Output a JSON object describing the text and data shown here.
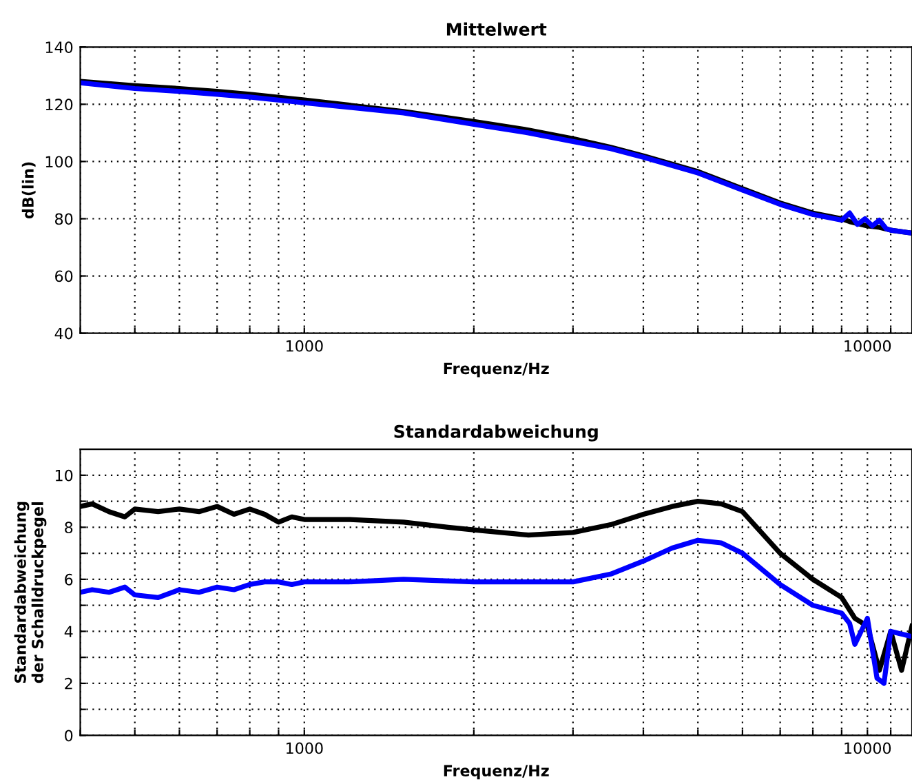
{
  "chart_data": [
    {
      "type": "line",
      "title": "Mittelwert",
      "xlabel": "Frequenz/Hz",
      "ylabel": "dB(lin)",
      "log": "x",
      "grid": true,
      "line_style": "solid",
      "xlim": [
        400,
        12000
      ],
      "ylim": [
        40,
        140
      ],
      "yticks": [
        40,
        60,
        80,
        100,
        120,
        140
      ],
      "xticks": [
        {
          "value": 400,
          "label": null
        },
        {
          "value": 500,
          "label": null
        },
        {
          "value": 600,
          "label": null
        },
        {
          "value": 700,
          "label": null
        },
        {
          "value": 800,
          "label": null
        },
        {
          "value": 900,
          "label": null
        },
        1000,
        {
          "value": 2000,
          "label": null
        },
        {
          "value": 3000,
          "label": null
        },
        {
          "value": 4000,
          "label": null
        },
        {
          "value": 5000,
          "label": null
        },
        {
          "value": 6000,
          "label": null
        },
        {
          "value": 7000,
          "label": null
        },
        {
          "value": 8000,
          "label": null
        },
        {
          "value": 9000,
          "label": null
        },
        10000,
        {
          "value": 11000,
          "label": null
        }
      ],
      "series": [
        {
          "color": "#000000",
          "x": [
            400,
            500,
            600,
            700,
            800,
            1000,
            1500,
            2000,
            2500,
            3000,
            3500,
            4000,
            5000,
            6000,
            7000,
            8000,
            9000,
            9300,
            10000,
            10500,
            11000,
            12000
          ],
          "values": [
            128,
            126.5,
            125.5,
            124.5,
            123.5,
            121.5,
            117.5,
            114,
            111,
            108,
            105,
            102,
            96.5,
            90.5,
            85.5,
            82,
            80,
            79,
            77.5,
            77,
            76,
            75
          ]
        },
        {
          "color": "#0000ff",
          "x": [
            400,
            500,
            600,
            700,
            800,
            1000,
            1500,
            2000,
            2500,
            3000,
            3500,
            4000,
            5000,
            6000,
            7000,
            8000,
            9000,
            9300,
            9600,
            9900,
            10200,
            10500,
            10800,
            11000,
            12000
          ],
          "values": [
            127.5,
            125.5,
            124.5,
            123.5,
            122.5,
            120.5,
            117,
            113,
            110,
            107,
            104.5,
            101.5,
            96,
            90,
            85,
            81.5,
            79.5,
            82,
            78,
            80,
            77.5,
            79.5,
            76.5,
            76,
            75
          ]
        }
      ]
    },
    {
      "type": "line",
      "title": "Standardabweichung",
      "xlabel": "Frequenz/Hz",
      "ylabel": "Standardabweichung\nder Schalldruckpegel",
      "log": "x",
      "grid": true,
      "line_style": "solid",
      "xlim": [
        400,
        12000
      ],
      "ylim": [
        0,
        11
      ],
      "yticks": [
        0,
        {
          "value": 1,
          "label": null
        },
        2,
        {
          "value": 3,
          "label": null
        },
        4,
        {
          "value": 5,
          "label": null
        },
        6,
        {
          "value": 7,
          "label": null
        },
        8,
        {
          "value": 9,
          "label": null
        },
        10
      ],
      "xticks": [
        {
          "value": 400,
          "label": null
        },
        {
          "value": 500,
          "label": null
        },
        {
          "value": 600,
          "label": null
        },
        {
          "value": 700,
          "label": null
        },
        {
          "value": 800,
          "label": null
        },
        {
          "value": 900,
          "label": null
        },
        1000,
        {
          "value": 2000,
          "label": null
        },
        {
          "value": 3000,
          "label": null
        },
        {
          "value": 4000,
          "label": null
        },
        {
          "value": 5000,
          "label": null
        },
        {
          "value": 6000,
          "label": null
        },
        {
          "value": 7000,
          "label": null
        },
        {
          "value": 8000,
          "label": null
        },
        {
          "value": 9000,
          "label": null
        },
        10000,
        {
          "value": 11000,
          "label": null
        }
      ],
      "series": [
        {
          "color": "#000000",
          "x": [
            400,
            420,
            450,
            480,
            500,
            550,
            600,
            650,
            700,
            750,
            800,
            850,
            900,
            950,
            1000,
            1200,
            1500,
            1800,
            2000,
            2500,
            3000,
            3500,
            4000,
            4500,
            5000,
            5500,
            6000,
            7000,
            8000,
            9000,
            9500,
            10000,
            10500,
            11000,
            11500,
            12000
          ],
          "values": [
            8.8,
            8.9,
            8.6,
            8.4,
            8.7,
            8.6,
            8.7,
            8.6,
            8.8,
            8.5,
            8.7,
            8.5,
            8.2,
            8.4,
            8.3,
            8.3,
            8.2,
            8.0,
            7.9,
            7.7,
            7.8,
            8.1,
            8.5,
            8.8,
            9.0,
            8.9,
            8.6,
            7.0,
            6.0,
            5.3,
            4.5,
            4.2,
            2.5,
            4.0,
            2.5,
            4.2
          ]
        },
        {
          "color": "#0000ff",
          "x": [
            400,
            420,
            450,
            480,
            500,
            550,
            600,
            650,
            700,
            750,
            800,
            850,
            900,
            950,
            1000,
            1200,
            1500,
            2000,
            2500,
            3000,
            3500,
            4000,
            4500,
            5000,
            5500,
            6000,
            7000,
            8000,
            9000,
            9300,
            9500,
            10000,
            10400,
            10700,
            11000,
            12000
          ],
          "values": [
            5.5,
            5.6,
            5.5,
            5.7,
            5.4,
            5.3,
            5.6,
            5.5,
            5.7,
            5.6,
            5.8,
            5.9,
            5.9,
            5.8,
            5.9,
            5.9,
            6.0,
            5.9,
            5.9,
            5.9,
            6.2,
            6.7,
            7.2,
            7.5,
            7.4,
            7.0,
            5.8,
            5.0,
            4.7,
            4.3,
            3.5,
            4.5,
            2.2,
            2.0,
            4.0,
            3.8
          ]
        }
      ]
    }
  ]
}
